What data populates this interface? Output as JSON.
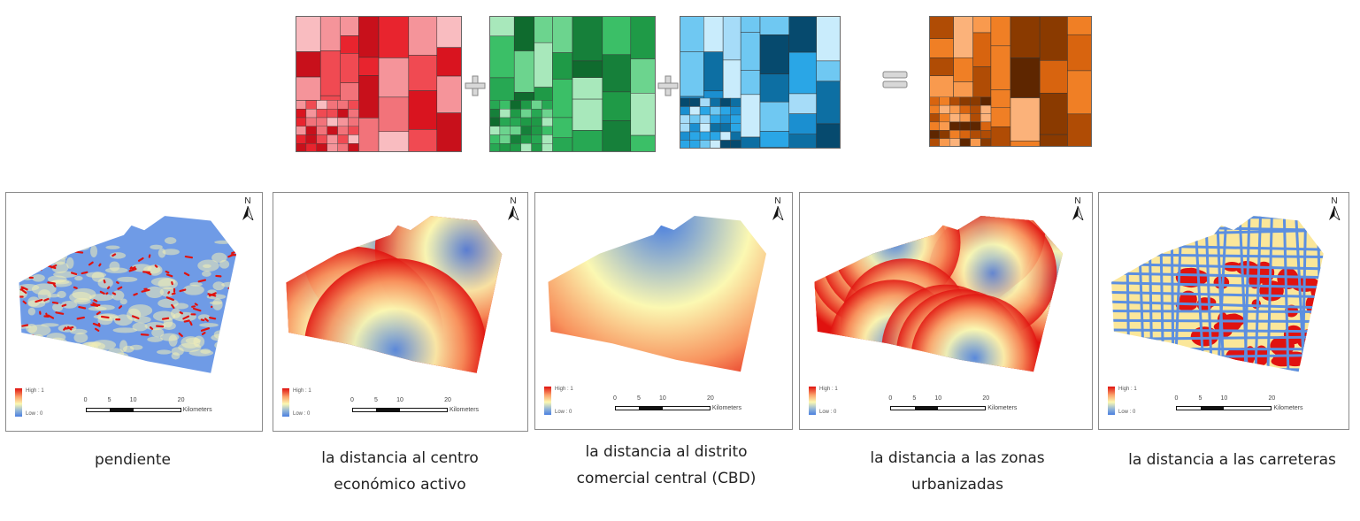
{
  "top_equation": {
    "layers": [
      {
        "name": "red-layer",
        "palette": [
          "#c8101b",
          "#d9141f",
          "#e8242e",
          "#f04a52",
          "#f2737a",
          "#f5949a",
          "#f9bcc0"
        ]
      },
      {
        "name": "green-layer",
        "palette": [
          "#0f6b2e",
          "#16803a",
          "#1f9a47",
          "#27a853",
          "#3bbf67",
          "#6cd48e",
          "#a8e8bb"
        ]
      },
      {
        "name": "blue-layer",
        "palette": [
          "#064a6e",
          "#0d6fa3",
          "#1b8fd0",
          "#2aa6e6",
          "#6fc8f2",
          "#a6dcf8",
          "#c9ecfc"
        ]
      },
      {
        "name": "result-layer",
        "palette": [
          "#5e2600",
          "#8a3a00",
          "#b04c05",
          "#d8640f",
          "#f07f25",
          "#f99a4e",
          "#fbb27a"
        ]
      }
    ],
    "operators": [
      "+",
      "+",
      "="
    ]
  },
  "maps": [
    {
      "id": "slope",
      "caption_lines": [
        "pendiente"
      ],
      "north": "N",
      "legend": {
        "high": "High : 1",
        "low": "Low : 0"
      },
      "scale": {
        "ticks": [
          "0",
          "5",
          "10",
          "20"
        ],
        "unit": "Kilometers"
      }
    },
    {
      "id": "economic-center",
      "caption_lines": [
        "la distancia al centro",
        "económico activo"
      ],
      "north": "N",
      "legend": {
        "high": "High : 1",
        "low": "Low : 0"
      },
      "scale": {
        "ticks": [
          "0",
          "5",
          "10",
          "20"
        ],
        "unit": "Kilometers"
      }
    },
    {
      "id": "cbd",
      "caption_lines": [
        "la distancia al distrito",
        "comercial central (CBD)"
      ],
      "north": "N",
      "legend": {
        "high": "High : 1",
        "low": "Low : 0"
      },
      "scale": {
        "ticks": [
          "0",
          "5",
          "10",
          "20"
        ],
        "unit": "Kilometers"
      }
    },
    {
      "id": "urbanized",
      "caption_lines": [
        "la distancia a las zonas",
        "urbanizadas"
      ],
      "north": "N",
      "legend": {
        "high": "High : 1",
        "low": "Low : 0"
      },
      "scale": {
        "ticks": [
          "0",
          "5",
          "10",
          "20"
        ],
        "unit": "Kilometers"
      }
    },
    {
      "id": "roads",
      "caption_lines": [
        "la distancia a las carreteras"
      ],
      "north": "N",
      "legend": {
        "high": "High : 1",
        "low": "Low : 0"
      },
      "scale": {
        "ticks": [
          "0",
          "5",
          "10",
          "20"
        ],
        "unit": "Kilometers"
      }
    }
  ],
  "colors": {
    "ramp_high": "#e0120f",
    "ramp_mid": "#fbf8b2",
    "ramp_low": "#4a7fe0"
  }
}
